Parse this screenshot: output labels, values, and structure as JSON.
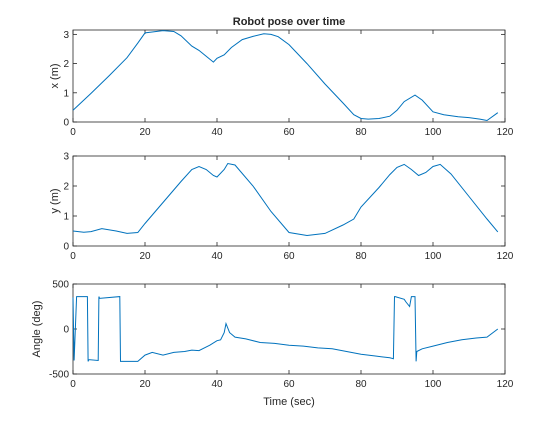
{
  "chart_data": [
    {
      "type": "line",
      "title": "Robot pose over time",
      "xlabel": "",
      "ylabel": "x (m)",
      "xlim": [
        0,
        120
      ],
      "ylim": [
        0,
        3.15
      ],
      "xticks": [
        0,
        20,
        40,
        60,
        80,
        100,
        120
      ],
      "yticks": [
        0,
        1,
        2,
        3
      ],
      "grid": false,
      "color": "#0072BD",
      "series": [
        {
          "x": [
            0,
            5,
            10,
            15,
            18,
            20,
            22,
            25,
            28,
            30,
            33,
            35,
            37,
            39,
            40,
            42,
            44,
            47,
            50,
            53,
            55,
            57,
            60,
            65,
            70,
            75,
            78,
            80,
            82,
            85,
            88,
            90,
            92,
            95,
            97,
            100,
            103,
            107,
            110,
            113,
            115,
            118
          ],
          "y": [
            0.4,
            0.98,
            1.58,
            2.2,
            2.7,
            3.05,
            3.08,
            3.13,
            3.1,
            2.95,
            2.6,
            2.45,
            2.25,
            2.05,
            2.18,
            2.3,
            2.55,
            2.82,
            2.93,
            3.02,
            3.0,
            2.92,
            2.65,
            2.0,
            1.3,
            0.65,
            0.25,
            0.12,
            0.1,
            0.12,
            0.2,
            0.4,
            0.7,
            0.92,
            0.75,
            0.35,
            0.25,
            0.18,
            0.15,
            0.1,
            0.05,
            0.32
          ]
        }
      ]
    },
    {
      "type": "line",
      "title": "",
      "xlabel": "",
      "ylabel": "y (m)",
      "xlim": [
        0,
        120
      ],
      "ylim": [
        0,
        3
      ],
      "xticks": [
        0,
        20,
        40,
        60,
        80,
        100,
        120
      ],
      "yticks": [
        0,
        1,
        2,
        3
      ],
      "grid": false,
      "color": "#0072BD",
      "series": [
        {
          "x": [
            0,
            3,
            5,
            8,
            12,
            15,
            18,
            20,
            25,
            30,
            33,
            35,
            37,
            39,
            40,
            42,
            43,
            45,
            50,
            55,
            60,
            65,
            70,
            75,
            78,
            80,
            85,
            88,
            90,
            92,
            94,
            96,
            98,
            100,
            102,
            105,
            110,
            115,
            118
          ],
          "y": [
            0.5,
            0.46,
            0.48,
            0.58,
            0.5,
            0.42,
            0.45,
            0.75,
            1.45,
            2.15,
            2.55,
            2.65,
            2.55,
            2.35,
            2.3,
            2.55,
            2.75,
            2.7,
            2.0,
            1.15,
            0.45,
            0.35,
            0.42,
            0.7,
            0.9,
            1.3,
            1.95,
            2.38,
            2.62,
            2.72,
            2.55,
            2.35,
            2.45,
            2.65,
            2.72,
            2.4,
            1.65,
            0.9,
            0.47
          ]
        }
      ]
    },
    {
      "type": "line",
      "title": "",
      "xlabel": "Time (sec)",
      "ylabel": "Angle (deg)",
      "xlim": [
        0,
        120
      ],
      "ylim": [
        -500,
        500
      ],
      "xticks": [
        0,
        20,
        40,
        60,
        80,
        100,
        120
      ],
      "yticks": [
        -500,
        0,
        500
      ],
      "grid": false,
      "color": "#0072BD",
      "series": [
        {
          "x": [
            0,
            0.3,
            1,
            4,
            4.2,
            4.4,
            7,
            7.2,
            7.4,
            13,
            13.2,
            13.4,
            18,
            20,
            22,
            25,
            28,
            31,
            33,
            35,
            38,
            40,
            41,
            42,
            42.5,
            43.5,
            45,
            48,
            52,
            56,
            60,
            64,
            68,
            72,
            76,
            80,
            84,
            88,
            89,
            89.3,
            89.5,
            92,
            92.5,
            93.5,
            94,
            95,
            95.3,
            95.5,
            97,
            100,
            104,
            108,
            112,
            115,
            118
          ],
          "y": [
            350,
            -350,
            360,
            360,
            -360,
            -340,
            -350,
            360,
            340,
            360,
            -360,
            -360,
            -360,
            -290,
            -260,
            -290,
            -260,
            -250,
            -235,
            -240,
            -180,
            -130,
            -120,
            -40,
            60,
            -40,
            -90,
            -110,
            -150,
            -160,
            -180,
            -190,
            -210,
            -220,
            -250,
            -280,
            -300,
            -320,
            -330,
            360,
            360,
            330,
            300,
            250,
            360,
            360,
            -360,
            -250,
            -220,
            -190,
            -150,
            -120,
            -100,
            -90,
            0
          ]
        }
      ]
    }
  ]
}
